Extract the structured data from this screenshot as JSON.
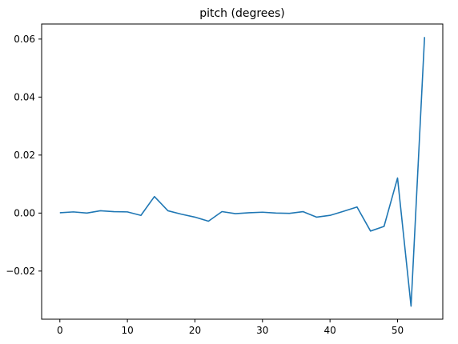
{
  "chart_data": {
    "type": "line",
    "title": "pitch (degrees)",
    "xlabel": "",
    "ylabel": "",
    "xlim": [
      -2.7,
      56.7
    ],
    "ylim": [
      -0.0366,
      0.0652
    ],
    "xticks": [
      0,
      10,
      20,
      30,
      40,
      50
    ],
    "yticks": [
      -0.02,
      0.0,
      0.02,
      0.04,
      0.06
    ],
    "xtick_labels": [
      "0",
      "10",
      "20",
      "30",
      "40",
      "50"
    ],
    "ytick_labels": [
      "−0.02",
      "0.00",
      "0.02",
      "0.04",
      "0.06"
    ],
    "grid": false,
    "series": [
      {
        "color": "#1f77b4",
        "x": [
          0,
          2,
          4,
          6,
          8,
          10,
          12,
          14,
          16,
          18,
          20,
          22,
          24,
          26,
          28,
          30,
          32,
          34,
          36,
          38,
          40,
          42,
          44,
          46,
          48,
          50,
          52,
          54
        ],
        "y": [
          0.0001,
          0.0004,
          0.0,
          0.0008,
          0.0005,
          0.0004,
          -0.0008,
          0.0057,
          0.0008,
          -0.0004,
          -0.0014,
          -0.0028,
          0.0005,
          -0.0002,
          0.0001,
          0.0003,
          0.0,
          -0.0001,
          0.0005,
          -0.0014,
          -0.0008,
          0.0006,
          0.0021,
          -0.0062,
          -0.0046,
          0.0121,
          -0.0321,
          0.0607
        ]
      }
    ]
  }
}
